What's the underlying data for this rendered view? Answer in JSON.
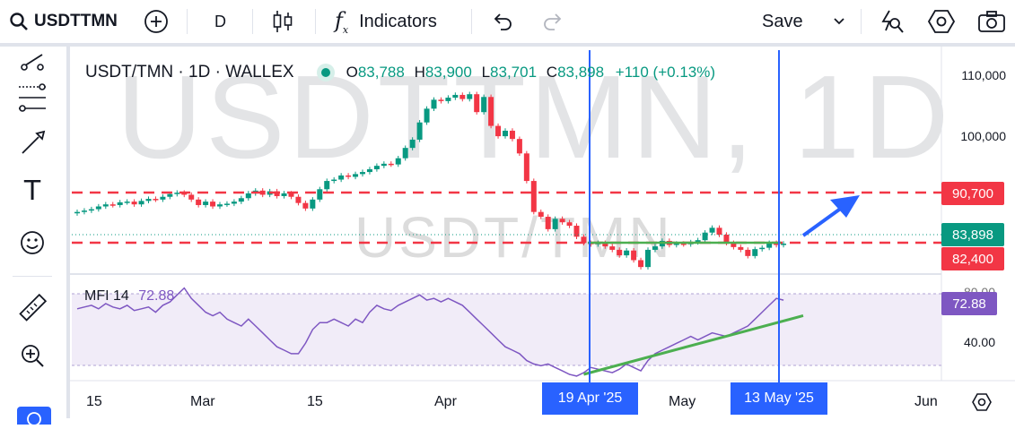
{
  "toolbar": {
    "symbol": "USDTTMN",
    "interval": "D",
    "indicators_label": "Indicators",
    "save_label": "Save"
  },
  "legend": {
    "title": "USDT/TMN · 1D · WALLEX",
    "o_label": "O",
    "o_value": "83,788",
    "h_label": "H",
    "h_value": "83,900",
    "l_label": "L",
    "l_value": "83,701",
    "c_label": "C",
    "c_value": "83,898",
    "change": "+110 (+0.13%)"
  },
  "watermark": {
    "large": "USDTTMN, 1D",
    "small": "USDT/TMN"
  },
  "indicator": {
    "name": "MFI 14",
    "value": "72.88"
  },
  "price_axis": {
    "labels": [
      "110,000",
      "100,000"
    ],
    "mfi_labels": [
      "80.00",
      "40.00"
    ],
    "badges": [
      {
        "value": "90,700",
        "color": "#f23645"
      },
      {
        "value": "83,898",
        "color": "#089981"
      },
      {
        "value": "82,400",
        "color": "#f23645"
      },
      {
        "value": "72.88",
        "color": "#7e57c2"
      }
    ]
  },
  "time_axis": {
    "labels": [
      "15",
      "Mar",
      "15",
      "Apr",
      "May",
      "Jun"
    ],
    "crosshair_labels": [
      "19 Apr '25",
      "13 May '25"
    ]
  },
  "colors": {
    "up": "#089981",
    "down": "#f23645",
    "accent": "#2962ff",
    "mfi": "#7e57c2",
    "trend": "#4caf50"
  },
  "chart_data": {
    "type": "candlestick",
    "y_range": [
      80000,
      112000
    ],
    "levels": [
      90700,
      82400
    ],
    "candles_close": [
      88500,
      88700,
      88900,
      89300,
      89600,
      89500,
      89900,
      90000,
      89600,
      90100,
      90400,
      90300,
      90700,
      91100,
      91300,
      91000,
      90300,
      89500,
      90000,
      89300,
      89600,
      89700,
      90000,
      90500,
      91200,
      91600,
      91000,
      91500,
      90800,
      91200,
      90700,
      89800,
      89000,
      90300,
      91800,
      93000,
      93200,
      93800,
      93600,
      94000,
      94300,
      94700,
      95200,
      95500,
      95400,
      96300,
      97800,
      99000,
      101500,
      103500,
      104800,
      104600,
      105100,
      105500,
      104900,
      105600,
      103000,
      105200,
      101000,
      99500,
      100300,
      99100,
      97000,
      93000,
      88500,
      87800,
      86000,
      87500,
      87000,
      86500,
      84900,
      84000,
      83800,
      84000,
      83500,
      83000,
      82200,
      82900,
      81500,
      80500,
      83000,
      83500,
      84300,
      83700,
      83900,
      83800,
      84100,
      84400,
      85500,
      86200,
      85200,
      84000,
      83400,
      83000,
      82100,
      83100,
      83300,
      84000,
      83700,
      83900
    ],
    "mfi_range": [
      30,
      85
    ],
    "mfi_values": [
      68,
      69,
      70,
      68,
      71,
      69,
      68,
      70,
      67,
      68,
      69,
      66,
      70,
      72,
      76,
      80,
      74,
      70,
      66,
      64,
      66,
      62,
      60,
      58,
      62,
      58,
      54,
      50,
      46,
      44,
      42,
      42,
      48,
      56,
      60,
      60,
      62,
      60,
      58,
      62,
      60,
      66,
      70,
      68,
      67,
      70,
      72,
      74,
      76,
      73,
      74,
      72,
      74,
      72,
      70,
      66,
      62,
      58,
      54,
      50,
      46,
      44,
      42,
      38,
      36,
      35,
      36,
      34,
      32,
      30,
      29,
      31,
      34,
      33,
      32,
      31,
      33,
      36,
      34,
      32,
      38,
      42,
      44,
      46,
      48,
      50,
      52,
      50,
      52,
      54,
      53,
      52,
      54,
      56,
      58,
      62,
      66,
      70,
      74,
      73
    ],
    "mfi_trend": [
      [
        71,
        30
      ],
      [
        100,
        64
      ]
    ],
    "vertical_markers": [
      "19 Apr '25",
      "13 May '25"
    ]
  }
}
